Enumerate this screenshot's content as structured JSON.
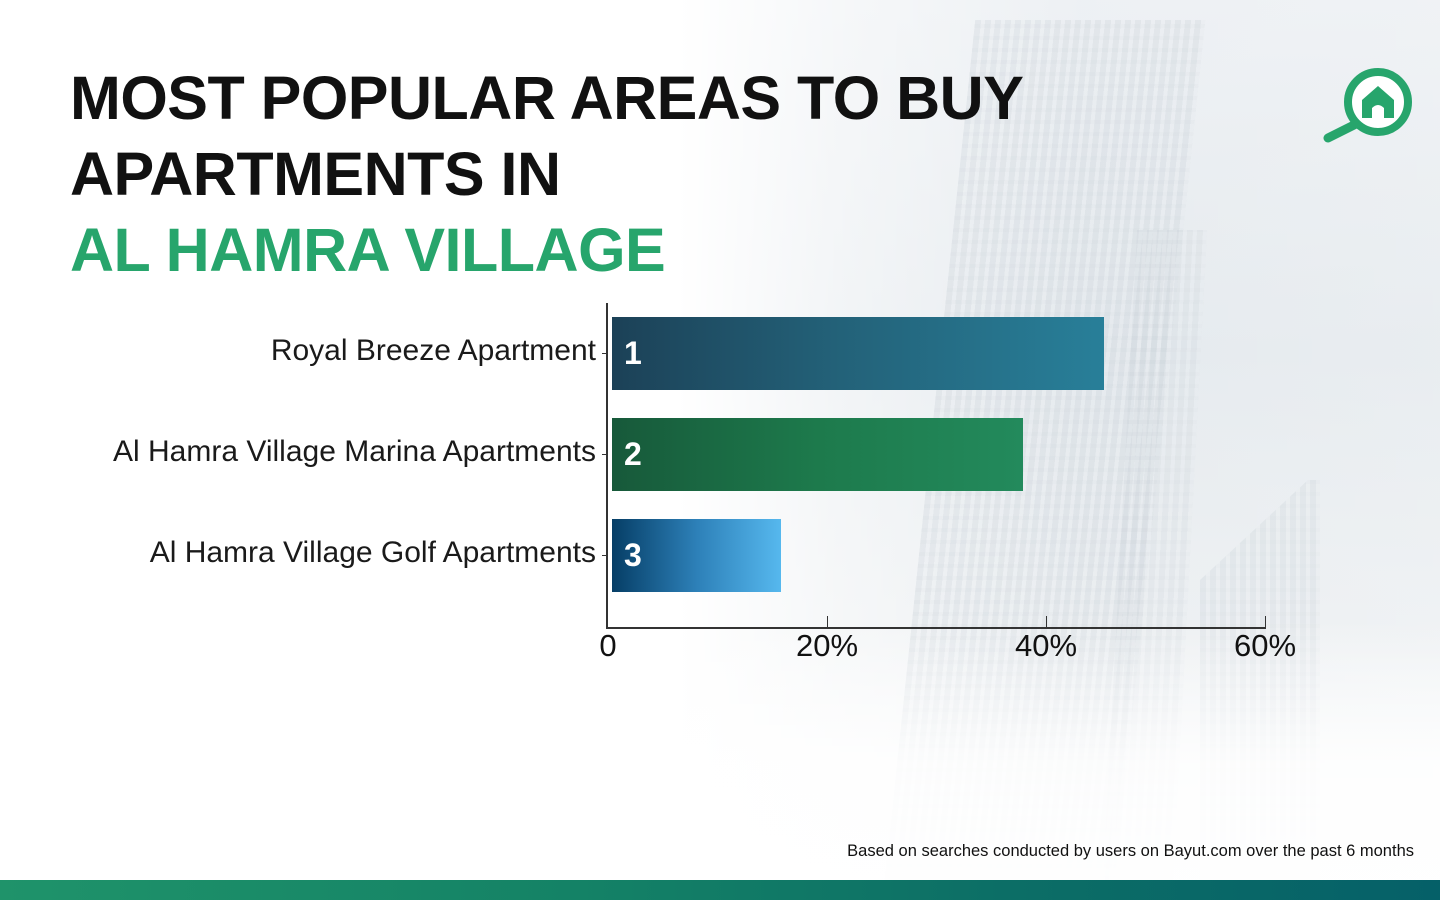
{
  "header": {
    "title_line1": "MOST POPULAR AREAS TO BUY",
    "title_line2": "APARTMENTS IN",
    "title_line3": "AL HAMRA VILLAGE",
    "accent_color": "#27a56c"
  },
  "logo": {
    "icon": "house-magnifier-icon",
    "color": "#27a56c"
  },
  "chart_data": {
    "type": "bar",
    "orientation": "horizontal",
    "title": "Most Popular Areas to Buy Apartments in Al Hamra Village",
    "categories": [
      "Royal Breeze Apartment",
      "Al Hamra Village Marina Apartments",
      "Al Hamra Village Golf Apartments"
    ],
    "ranks": [
      "1",
      "2",
      "3"
    ],
    "values": [
      45.3,
      37.9,
      15.8
    ],
    "unit": "%",
    "xlabel": "",
    "ylabel": "",
    "xlim": [
      0,
      60
    ],
    "xticks": [
      "0",
      "20%",
      "40%",
      "60%"
    ],
    "grid": false,
    "legend": null,
    "bar_colors": [
      "#236178",
      "#1d7a4c",
      "#2d80b8"
    ]
  },
  "footer": {
    "note": "Based on searches conducted by users on Bayut.com over the past 6 months",
    "bar_gradient": [
      "#1f936a",
      "#056068"
    ]
  }
}
